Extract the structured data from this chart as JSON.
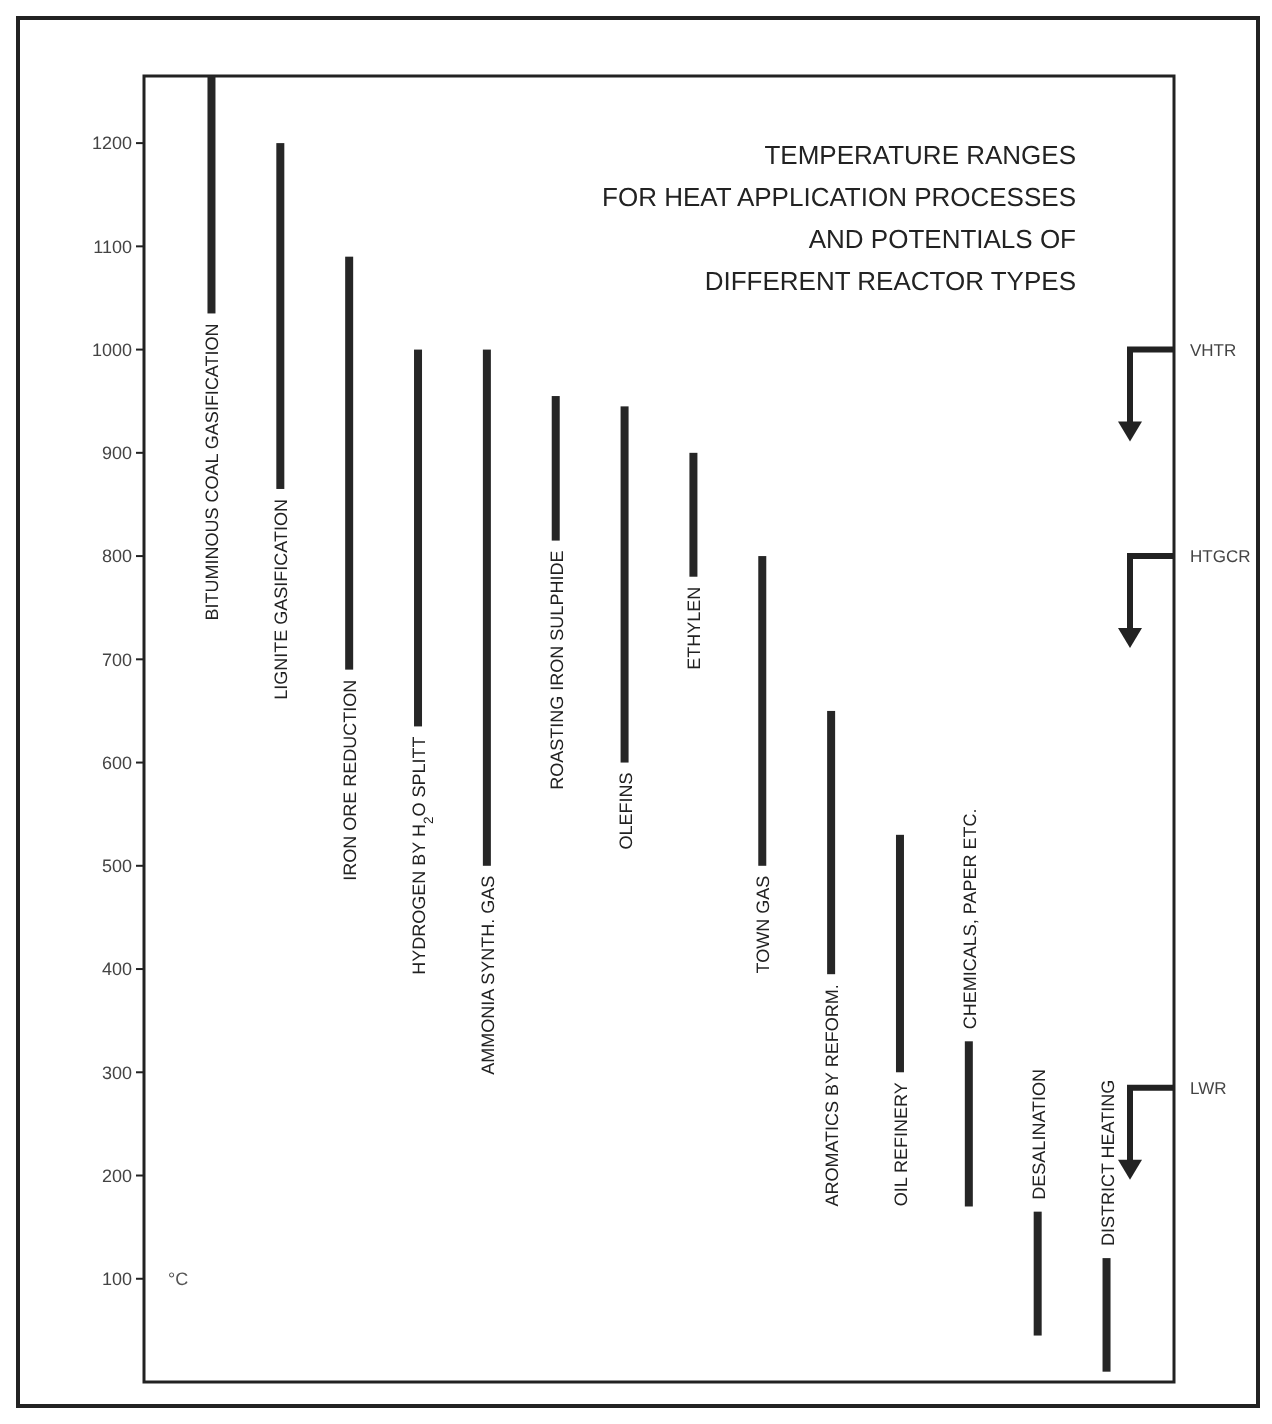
{
  "chart_data": {
    "type": "bar",
    "title": "TEMPERATURE RANGES\nFOR HEAT APPLICATION PROCESSES\nAND POTENTIALS OF\nDIFFERENT REACTOR TYPES",
    "ylabel": "°C",
    "categories": [
      "BITUMINOUS COAL GASIFICATION",
      "LIGNITE GASIFICATION",
      "IRON ORE REDUCTION",
      "HYDROGEN BY H$_{2}$O SPLITT",
      "AMMONIA SYNTH. GAS",
      "ROASTING IRON SULPHIDE",
      "OLEFINS",
      "ETHYLEN",
      "TOWN GAS",
      "AROMATICS BY REFORM.",
      "OIL REFINERY",
      "CHEMICALS, PAPER ETC.",
      "DESALINATION",
      "DISTRICT HEATING"
    ],
    "base": [
      1035,
      865,
      690,
      635,
      500,
      815,
      600,
      780,
      500,
      395,
      300,
      170,
      45,
      10
    ],
    "values": [
      230,
      335,
      400,
      365,
      500,
      140,
      345,
      120,
      300,
      255,
      230,
      160,
      120,
      110
    ],
    "color": "#262626",
    "ylim": [
      0,
      1265
    ],
    "yticks": [
      100,
      200,
      300,
      400,
      500,
      600,
      700,
      800,
      900,
      1000,
      1100,
      1200
    ],
    "ref_lines": [
      {
        "axis": "y",
        "value": 1000,
        "label": "VHTR"
      },
      {
        "axis": "y",
        "value": 800,
        "label": "HTGCR"
      },
      {
        "axis": "y",
        "value": 285,
        "label": "LWR"
      }
    ]
  }
}
